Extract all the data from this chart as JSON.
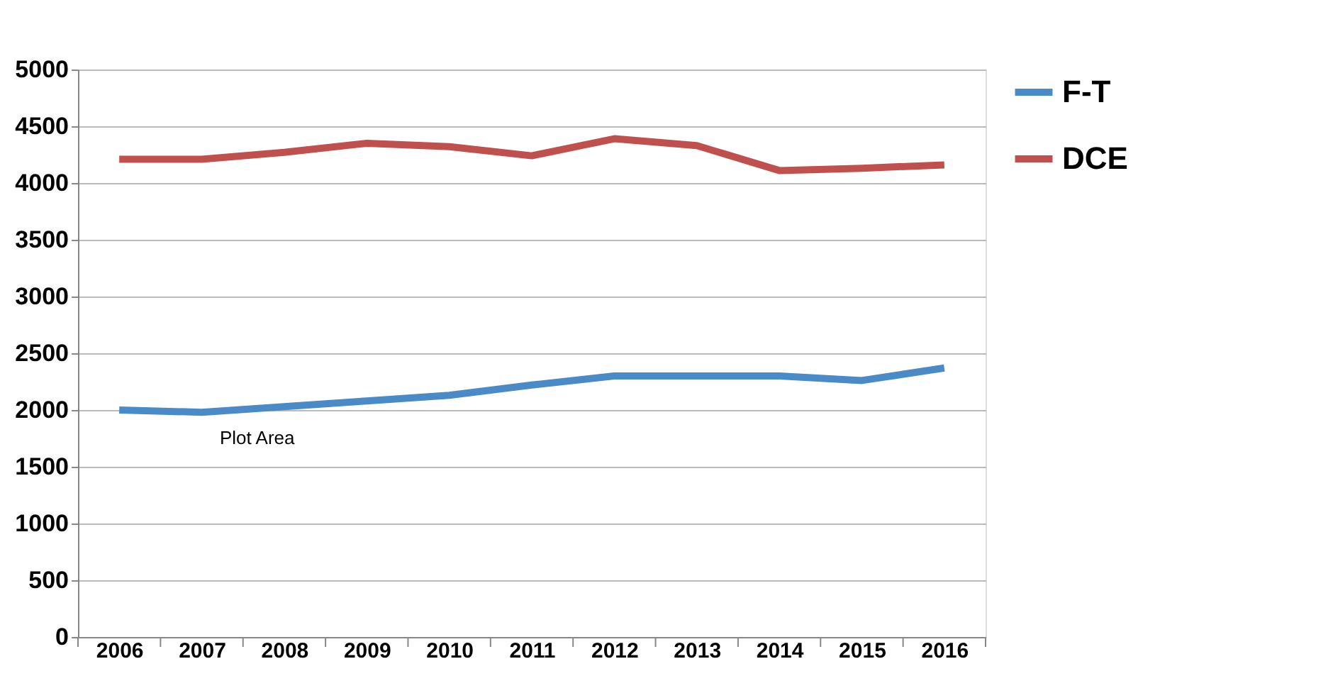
{
  "chart_data": {
    "type": "line",
    "categories": [
      "2006",
      "2007",
      "2008",
      "2009",
      "2010",
      "2011",
      "2012",
      "2013",
      "2014",
      "2015",
      "2016"
    ],
    "series": [
      {
        "name": "F-T",
        "color": "#4a8ac6",
        "values": [
          2000,
          1980,
          2030,
          2080,
          2130,
          2220,
          2300,
          2300,
          2300,
          2260,
          2370
        ]
      },
      {
        "name": "DCE",
        "color": "#c0504d",
        "values": [
          4210,
          4210,
          4270,
          4350,
          4320,
          4240,
          4390,
          4330,
          4110,
          4130,
          4160
        ]
      }
    ],
    "ylim": [
      0,
      5000
    ],
    "yticks": [
      0,
      500,
      1000,
      1500,
      2000,
      2500,
      3000,
      3500,
      4000,
      4500,
      5000
    ],
    "grid": "y",
    "legend": "right",
    "marker": "none",
    "line_style": "solid",
    "annotations": [
      "Plot Area"
    ]
  }
}
